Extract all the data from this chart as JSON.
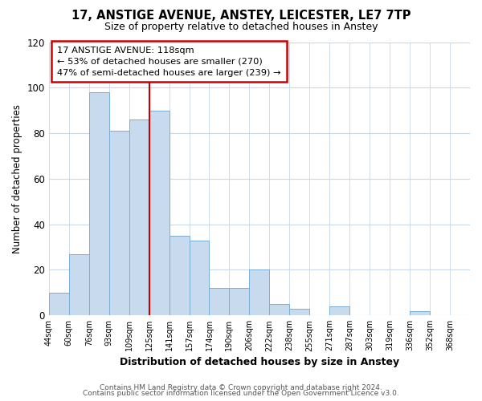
{
  "title": "17, ANSTIGE AVENUE, ANSTEY, LEICESTER, LE7 7TP",
  "subtitle": "Size of property relative to detached houses in Anstey",
  "xlabel": "Distribution of detached houses by size in Anstey",
  "ylabel": "Number of detached properties",
  "bin_labels": [
    "44sqm",
    "60sqm",
    "76sqm",
    "93sqm",
    "109sqm",
    "125sqm",
    "141sqm",
    "157sqm",
    "174sqm",
    "190sqm",
    "206sqm",
    "222sqm",
    "238sqm",
    "255sqm",
    "271sqm",
    "287sqm",
    "303sqm",
    "319sqm",
    "336sqm",
    "352sqm",
    "368sqm"
  ],
  "bar_values": [
    10,
    27,
    98,
    81,
    86,
    90,
    35,
    33,
    12,
    12,
    20,
    5,
    3,
    0,
    4,
    0,
    0,
    0,
    2,
    0,
    0
  ],
  "bar_color": "#c8daee",
  "bar_edge_color": "#7aaed6",
  "vline_x_index": 5,
  "vline_color": "#cc0000",
  "ylim": [
    0,
    120
  ],
  "yticks": [
    0,
    20,
    40,
    60,
    80,
    100,
    120
  ],
  "annotation_title": "17 ANSTIGE AVENUE: 118sqm",
  "annotation_line1": "← 53% of detached houses are smaller (270)",
  "annotation_line2": "47% of semi-detached houses are larger (239) →",
  "footer1": "Contains HM Land Registry data © Crown copyright and database right 2024.",
  "footer2": "Contains public sector information licensed under the Open Government Licence v3.0.",
  "bg_color": "#ffffff",
  "plot_bg_color": "#ffffff",
  "grid_color": "#c8d8e8"
}
